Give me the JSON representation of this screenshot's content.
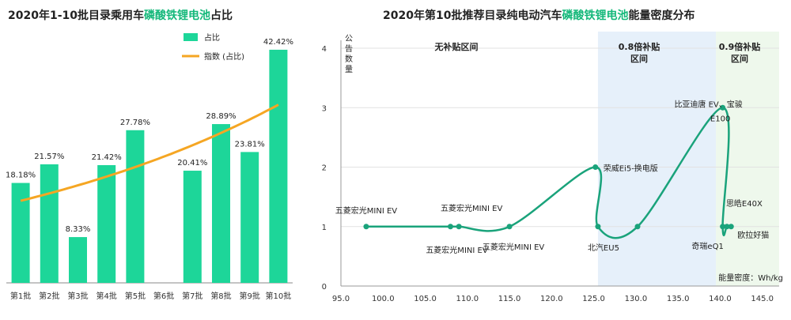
{
  "colors": {
    "bar": "#1dd699",
    "trend": "#f5a623",
    "curve": "#1aa37b",
    "accent": "#14b87a",
    "region2": "#e6f0fa",
    "region3": "#eef8ec",
    "grid": "#e2e2e2",
    "axis": "#999999"
  },
  "chart_data": [
    {
      "type": "bar",
      "title": {
        "prefix": "2020年1-10批目录乘用车",
        "highlight": "磷酸铁锂电池",
        "suffix": "占比"
      },
      "categories": [
        "第1批",
        "第2批",
        "第3批",
        "第4批",
        "第5批",
        "第6批",
        "第7批",
        "第8批",
        "第9批",
        "第10批"
      ],
      "series": [
        {
          "name": "占比",
          "values": [
            18.18,
            21.57,
            8.33,
            21.42,
            27.78,
            null,
            20.41,
            28.89,
            23.81,
            42.42
          ],
          "labels": [
            "18.18%",
            "21.57%",
            "8.33%",
            "21.42%",
            "27.78%",
            "",
            "20.41%",
            "28.89%",
            "23.81%",
            "42.42%"
          ]
        },
        {
          "name": "指数 (占比)",
          "type": "exponential-trendline"
        }
      ],
      "ylim": [
        0,
        45
      ],
      "legend": "top-left",
      "grid": false
    },
    {
      "type": "line",
      "title": {
        "prefix": "2020年第10批推荐目录纯电动汽车",
        "highlight": "磷酸铁锂电池",
        "suffix": "能量密度分布"
      },
      "ylabel": "公告数量",
      "xlabel": "能量密度：Wh/kg",
      "xlim": [
        95,
        147
      ],
      "ylim": [
        0,
        4
      ],
      "xticks": [
        "95.0",
        "100.0",
        "105.0",
        "110.0",
        "115.0",
        "120.0",
        "125.0",
        "130.0",
        "135.0",
        "140.0",
        "145.0"
      ],
      "yticks": [
        "0",
        "1",
        "2",
        "3",
        "4"
      ],
      "regions": [
        {
          "label": "无补贴区间",
          "from": 95,
          "to": 125.5
        },
        {
          "label": "0.8倍补贴区间",
          "from": 125.5,
          "to": 139.5
        },
        {
          "label": "0.9倍补贴区间",
          "from": 139.5,
          "to": 147
        }
      ],
      "points": [
        {
          "x": 98,
          "y": 1,
          "label": "五菱宏光MINI EV"
        },
        {
          "x": 108,
          "y": 1,
          "label": "五菱宏光MINI EV"
        },
        {
          "x": 109,
          "y": 1,
          "label": "五菱宏光MINI EV"
        },
        {
          "x": 115,
          "y": 1,
          "label": "五菱宏光MINI EV"
        },
        {
          "x": 125.2,
          "y": 2,
          "label": "荣威Ei5-换电版"
        },
        {
          "x": 125.5,
          "y": 1,
          "label": "北汽EU5"
        },
        {
          "x": 130.2,
          "y": 1,
          "label": ""
        },
        {
          "x": 140.3,
          "y": 3,
          "label": "比亚迪唐 EV、宝骏E100"
        },
        {
          "x": 140.3,
          "y": 1,
          "label": "奇瑞eQ1"
        },
        {
          "x": 140.8,
          "y": 1,
          "label": "思皓E40X"
        },
        {
          "x": 141.3,
          "y": 1,
          "label": "欧拉好猫"
        }
      ],
      "grid": true
    }
  ]
}
